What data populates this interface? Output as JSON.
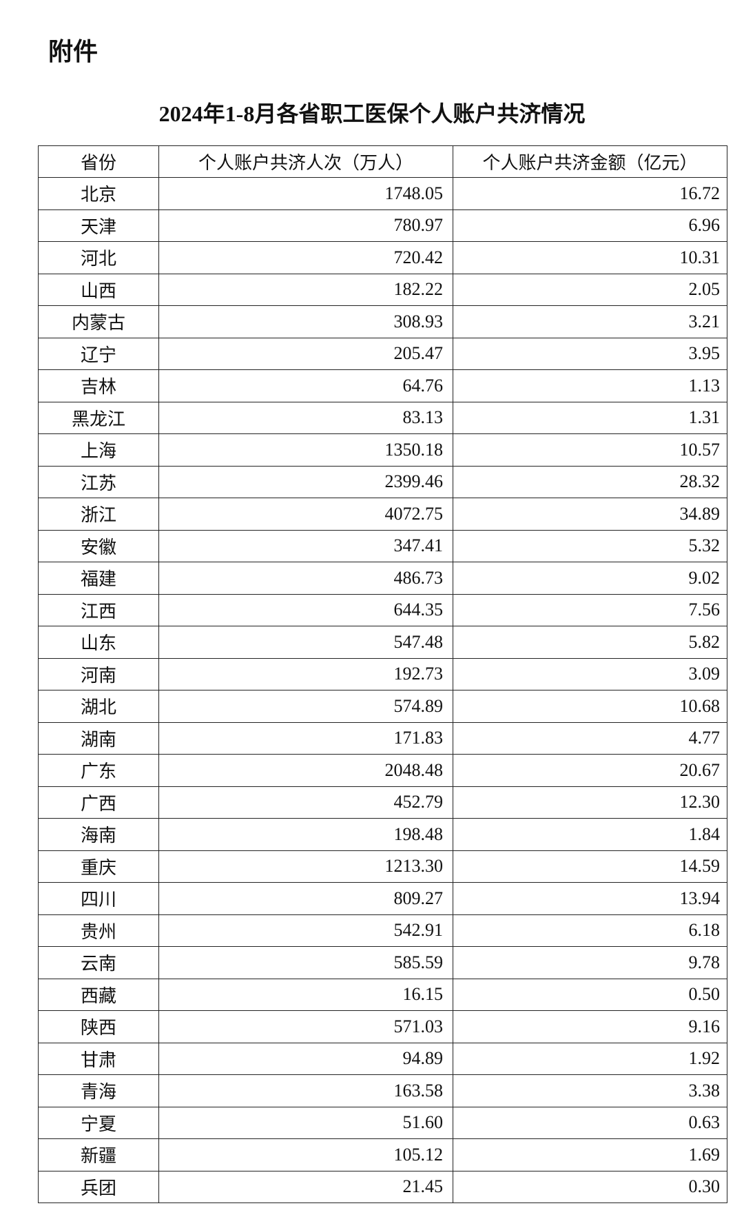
{
  "attachment_label": "附件",
  "title": "2024年1-8月各省职工医保个人账户共济情况",
  "table": {
    "headers": [
      "省份",
      "个人账户共济人次（万人）",
      "个人账户共济金额（亿元）"
    ],
    "rows": [
      [
        "北京",
        "1748.05",
        "16.72"
      ],
      [
        "天津",
        "780.97",
        "6.96"
      ],
      [
        "河北",
        "720.42",
        "10.31"
      ],
      [
        "山西",
        "182.22",
        "2.05"
      ],
      [
        "内蒙古",
        "308.93",
        "3.21"
      ],
      [
        "辽宁",
        "205.47",
        "3.95"
      ],
      [
        "吉林",
        "64.76",
        "1.13"
      ],
      [
        "黑龙江",
        "83.13",
        "1.31"
      ],
      [
        "上海",
        "1350.18",
        "10.57"
      ],
      [
        "江苏",
        "2399.46",
        "28.32"
      ],
      [
        "浙江",
        "4072.75",
        "34.89"
      ],
      [
        "安徽",
        "347.41",
        "5.32"
      ],
      [
        "福建",
        "486.73",
        "9.02"
      ],
      [
        "江西",
        "644.35",
        "7.56"
      ],
      [
        "山东",
        "547.48",
        "5.82"
      ],
      [
        "河南",
        "192.73",
        "3.09"
      ],
      [
        "湖北",
        "574.89",
        "10.68"
      ],
      [
        "湖南",
        "171.83",
        "4.77"
      ],
      [
        "广东",
        "2048.48",
        "20.67"
      ],
      [
        "广西",
        "452.79",
        "12.30"
      ],
      [
        "海南",
        "198.48",
        "1.84"
      ],
      [
        "重庆",
        "1213.30",
        "14.59"
      ],
      [
        "四川",
        "809.27",
        "13.94"
      ],
      [
        "贵州",
        "542.91",
        "6.18"
      ],
      [
        "云南",
        "585.59",
        "9.78"
      ],
      [
        "西藏",
        "16.15",
        "0.50"
      ],
      [
        "陕西",
        "571.03",
        "9.16"
      ],
      [
        "甘肃",
        "94.89",
        "1.92"
      ],
      [
        "青海",
        "163.58",
        "3.38"
      ],
      [
        "宁夏",
        "51.60",
        "0.63"
      ],
      [
        "新疆",
        "105.12",
        "1.69"
      ],
      [
        "兵团",
        "21.45",
        "0.30"
      ]
    ]
  }
}
